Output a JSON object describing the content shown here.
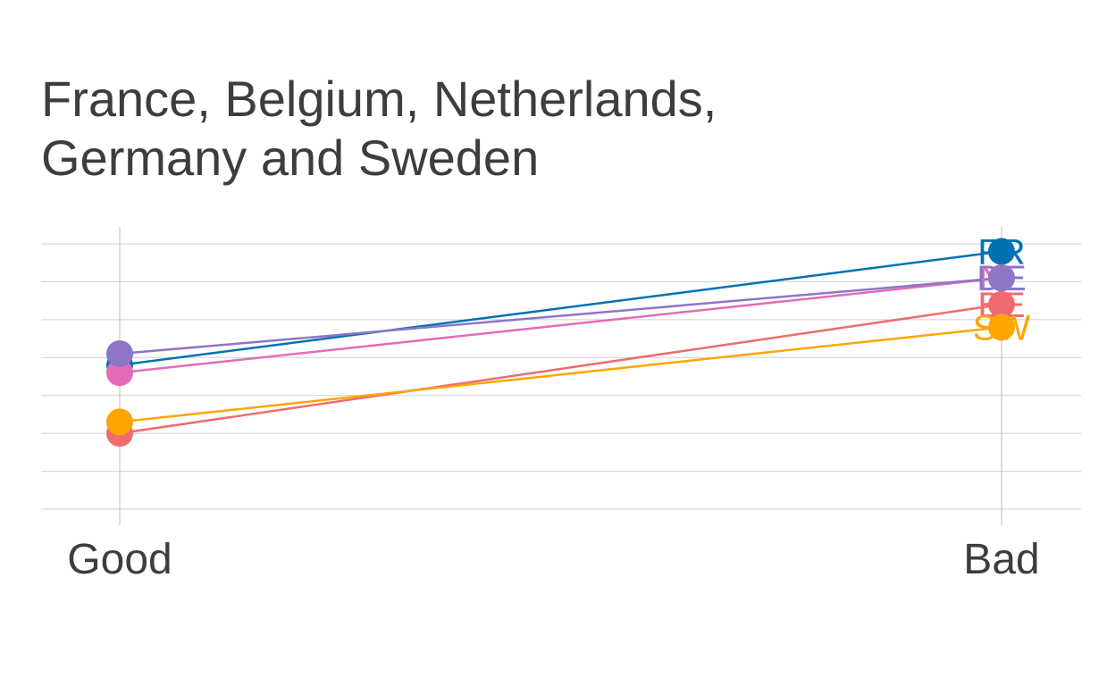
{
  "chart_data": {
    "type": "line",
    "title_lines": [
      "France, Belgium, Netherlands,",
      "Germany and Sweden"
    ],
    "categories": [
      "Good",
      "Bad"
    ],
    "ylim": [
      0,
      7.4
    ],
    "grid": true,
    "y_gridlines": [
      0,
      1,
      2,
      3,
      4,
      5,
      6,
      7
    ],
    "series": [
      {
        "name": "FR",
        "label": "FR",
        "color": "#0072B2",
        "values": [
          3.8,
          6.8
        ]
      },
      {
        "name": "BE",
        "label": "BE",
        "color": "#F06B6F",
        "values": [
          2.0,
          5.4
        ]
      },
      {
        "name": "NL",
        "label": "NL",
        "color": "#E66BB5",
        "values": [
          3.6,
          6.1
        ]
      },
      {
        "name": "DE",
        "label": "DE",
        "color": "#8E75C8",
        "values": [
          4.1,
          6.1
        ]
      },
      {
        "name": "SW",
        "label": "SW",
        "color": "#FFA500",
        "values": [
          2.3,
          4.8
        ]
      }
    ]
  }
}
